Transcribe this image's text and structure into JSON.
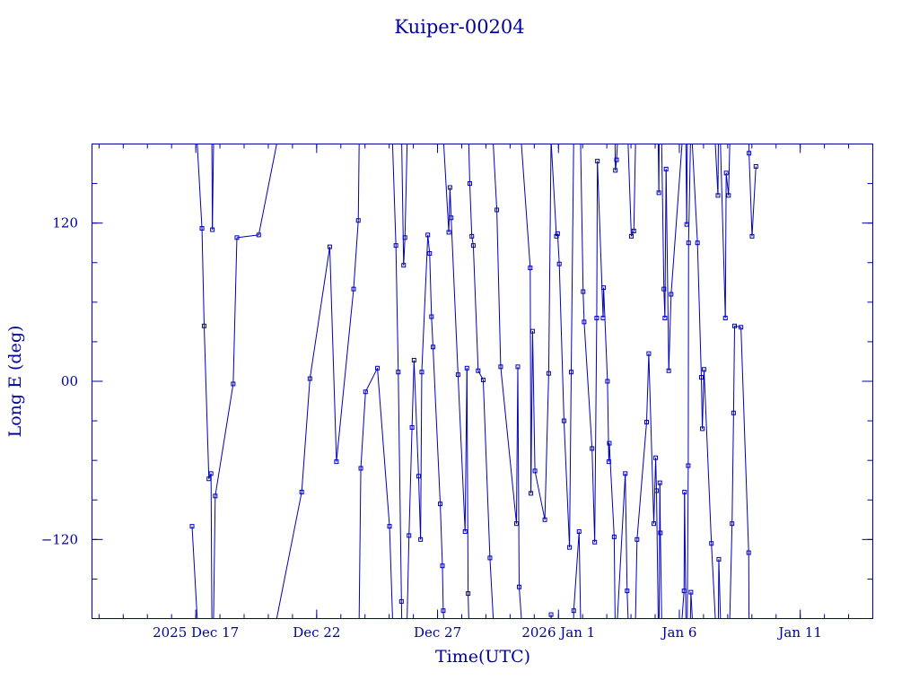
{
  "chart_data": {
    "type": "scatter",
    "title": "Kuiper-00204",
    "xlabel": "Time(UTC)",
    "ylabel": "Long E (deg)",
    "xlim": [
      "2025-12-12T17:00",
      "2026-01-14T00:00"
    ],
    "ylim": [
      -180,
      180
    ],
    "x_ticks": [
      {
        "t": "2025-12-17T00:00",
        "label": "2025 Dec 17"
      },
      {
        "t": "2025-12-22T00:00",
        "label": "Dec 22"
      },
      {
        "t": "2025-12-27T00:00",
        "label": "Dec 27"
      },
      {
        "t": "2026-01-01T00:00",
        "label": "2026 Jan  1"
      },
      {
        "t": "2026-01-06T00:00",
        "label": "Jan  6"
      },
      {
        "t": "2026-01-11T00:00",
        "label": "Jan 11"
      }
    ],
    "y_ticks": [
      {
        "v": 120,
        "label": "120"
      },
      {
        "v": 0,
        "label": "00"
      },
      {
        "v": -120,
        "label": "−120"
      }
    ],
    "grid": false,
    "series": [
      {
        "color": "#0000b8",
        "points": [
          [
            "2025-12-16T20:20",
            -110
          ],
          [
            "2025-12-17T06:10",
            116
          ],
          [
            "2025-12-17T08:20",
            42
          ],
          [
            "2025-12-17T13:00",
            -74
          ],
          [
            "2025-12-17T15:10",
            -70
          ],
          [
            "2025-12-17T16:30",
            115
          ],
          [
            "2025-12-17T19:20",
            -87
          ],
          [
            "2025-12-18T13:10",
            -2
          ],
          [
            "2025-12-18T16:50",
            109
          ],
          [
            "2025-12-19T14:30",
            111
          ],
          [
            "2025-12-21T09:10",
            -84
          ],
          [
            "2025-12-21T17:20",
            2
          ],
          [
            "2025-12-22T13:00",
            102
          ],
          [
            "2025-12-22T19:40",
            -61
          ],
          [
            "2025-12-23T12:40",
            70
          ],
          [
            "2025-12-23T17:20",
            122
          ],
          [
            "2025-12-23T19:50",
            -66
          ],
          [
            "2025-12-24T00:30",
            -8
          ],
          [
            "2025-12-24T12:20",
            10
          ],
          [
            "2025-12-25T00:20",
            -110
          ],
          [
            "2025-12-25T06:40",
            103
          ],
          [
            "2025-12-25T09:00",
            7
          ],
          [
            "2025-12-25T12:10",
            -167
          ],
          [
            "2025-12-25T14:20",
            88
          ],
          [
            "2025-12-25T15:40",
            109
          ],
          [
            "2025-12-25T19:40",
            -117
          ],
          [
            "2025-12-25T22:40",
            -35
          ],
          [
            "2025-12-26T00:40",
            16
          ],
          [
            "2025-12-26T05:10",
            -72
          ],
          [
            "2025-12-26T07:10",
            -120
          ],
          [
            "2025-12-26T08:20",
            7
          ],
          [
            "2025-12-26T14:20",
            111
          ],
          [
            "2025-12-26T16:10",
            97
          ],
          [
            "2025-12-26T18:00",
            49
          ],
          [
            "2025-12-26T19:30",
            26
          ],
          [
            "2025-12-27T02:40",
            -93
          ],
          [
            "2025-12-27T04:50",
            -140
          ],
          [
            "2025-12-27T05:40",
            -174
          ],
          [
            "2025-12-27T11:10",
            113
          ],
          [
            "2025-12-27T12:20",
            147
          ],
          [
            "2025-12-27T13:30",
            124
          ],
          [
            "2025-12-27T20:20",
            5
          ],
          [
            "2025-12-28T03:20",
            -114
          ],
          [
            "2025-12-28T05:10",
            10
          ],
          [
            "2025-12-28T06:20",
            -161
          ],
          [
            "2025-12-28T08:00",
            150
          ],
          [
            "2025-12-28T10:00",
            110
          ],
          [
            "2025-12-28T11:30",
            103
          ],
          [
            "2025-12-28T16:20",
            8
          ],
          [
            "2025-12-28T21:20",
            1
          ],
          [
            "2025-12-29T04:00",
            -134
          ],
          [
            "2025-12-29T10:50",
            130
          ],
          [
            "2025-12-29T14:40",
            11
          ],
          [
            "2025-12-30T06:20",
            -108
          ],
          [
            "2025-12-30T07:40",
            11
          ],
          [
            "2025-12-30T09:00",
            -156
          ],
          [
            "2025-12-30T20:00",
            86
          ],
          [
            "2025-12-30T20:40",
            -85
          ],
          [
            "2025-12-30T22:20",
            38
          ],
          [
            "2025-12-31T00:40",
            -68
          ],
          [
            "2025-12-31T10:30",
            -105
          ],
          [
            "2025-12-31T14:20",
            6
          ],
          [
            "2025-12-31T16:40",
            -177
          ],
          [
            "2025-12-31T22:00",
            110
          ],
          [
            "2025-12-31T23:10",
            112
          ],
          [
            "2026-01-01T00:50",
            89
          ],
          [
            "2026-01-01T05:30",
            -30
          ],
          [
            "2026-01-01T11:00",
            -126
          ],
          [
            "2026-01-01T12:40",
            7
          ],
          [
            "2026-01-01T15:10",
            -174
          ],
          [
            "2026-01-01T20:30",
            -114
          ],
          [
            "2026-01-02T00:30",
            68
          ],
          [
            "2026-01-02T01:30",
            45
          ],
          [
            "2026-01-02T09:20",
            -51
          ],
          [
            "2026-01-02T12:00",
            -122
          ],
          [
            "2026-01-02T14:00",
            48
          ],
          [
            "2026-01-02T14:40",
            167
          ],
          [
            "2026-01-02T20:20",
            48
          ],
          [
            "2026-01-02T20:50",
            71
          ],
          [
            "2026-01-03T00:40",
            0
          ],
          [
            "2026-01-03T02:00",
            -61
          ],
          [
            "2026-01-03T02:30",
            -47
          ],
          [
            "2026-01-03T07:20",
            -118
          ],
          [
            "2026-01-03T08:30",
            160
          ],
          [
            "2026-01-03T09:40",
            168
          ],
          [
            "2026-01-03T18:20",
            -70
          ],
          [
            "2026-01-03T20:10",
            -159
          ],
          [
            "2026-01-04T00:20",
            110
          ],
          [
            "2026-01-04T02:50",
            114
          ],
          [
            "2026-01-04T06:00",
            -120
          ],
          [
            "2026-01-04T15:30",
            -31
          ],
          [
            "2026-01-04T17:40",
            21
          ],
          [
            "2026-01-04T22:40",
            -108
          ],
          [
            "2026-01-05T00:30",
            -58
          ],
          [
            "2026-01-05T01:20",
            -83
          ],
          [
            "2026-01-05T03:40",
            143
          ],
          [
            "2026-01-05T04:40",
            -77
          ],
          [
            "2026-01-05T05:10",
            -115
          ],
          [
            "2026-01-05T08:40",
            70
          ],
          [
            "2026-01-05T09:40",
            48
          ],
          [
            "2026-01-05T10:50",
            161
          ],
          [
            "2026-01-05T13:30",
            8
          ],
          [
            "2026-01-05T15:50",
            66
          ],
          [
            "2026-01-06T04:40",
            -159
          ],
          [
            "2026-01-06T05:10",
            -84
          ],
          [
            "2026-01-06T07:20",
            119
          ],
          [
            "2026-01-06T08:50",
            -64
          ],
          [
            "2026-01-06T09:10",
            105
          ],
          [
            "2026-01-06T11:30",
            -160
          ],
          [
            "2026-01-06T18:00",
            105
          ],
          [
            "2026-01-06T21:50",
            3
          ],
          [
            "2026-01-06T22:50",
            -36
          ],
          [
            "2026-01-07T00:30",
            9
          ],
          [
            "2026-01-07T07:50",
            -123
          ],
          [
            "2026-01-07T14:20",
            141
          ],
          [
            "2026-01-07T15:10",
            -135
          ],
          [
            "2026-01-07T21:40",
            48
          ],
          [
            "2026-01-07T22:30",
            158
          ],
          [
            "2026-01-08T00:50",
            141
          ],
          [
            "2026-01-08T04:20",
            -108
          ],
          [
            "2026-01-08T05:50",
            -24
          ],
          [
            "2026-01-08T06:50",
            42
          ],
          [
            "2026-01-08T13:10",
            41
          ],
          [
            "2026-01-08T20:50",
            -130
          ],
          [
            "2026-01-08T21:10",
            173
          ],
          [
            "2026-01-09T00:10",
            110
          ],
          [
            "2026-01-09T04:00",
            163
          ]
        ]
      }
    ]
  }
}
